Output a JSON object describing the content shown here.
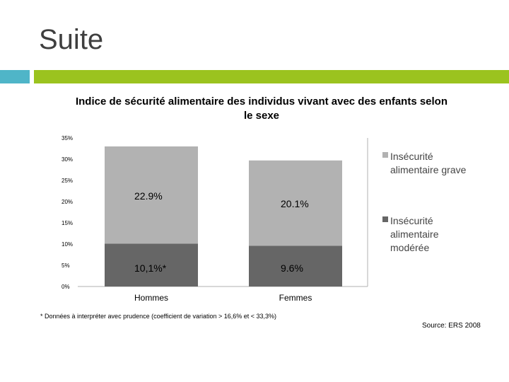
{
  "slide": {
    "title": "Suite",
    "note": "* Données à interpréter avec prudence (coefficient de variation > 16,6% et < 33,3%)",
    "source": "Source: ERS 2008"
  },
  "chart_data": {
    "type": "bar",
    "stacked": true,
    "title": "Indice de sécurité alimentaire des individus vivant avec des enfants selon le sexe",
    "categories": [
      "Hommes",
      "Femmes"
    ],
    "series": [
      {
        "name": "Insécurité alimentaire modérée",
        "values": [
          10.1,
          9.6
        ],
        "labels": [
          "10,1%*",
          "9.6%"
        ],
        "color": "#666666"
      },
      {
        "name": "Insécurité alimentaire grave",
        "values": [
          22.9,
          20.1
        ],
        "labels": [
          "22.9%",
          "20.1%"
        ],
        "color": "#b2b2b2"
      }
    ],
    "y_ticks": [
      "0%",
      "5%",
      "10%",
      "15%",
      "20%",
      "25%",
      "30%",
      "35%"
    ],
    "ylim": [
      0,
      35
    ],
    "legend_position": "right",
    "grid": false
  }
}
